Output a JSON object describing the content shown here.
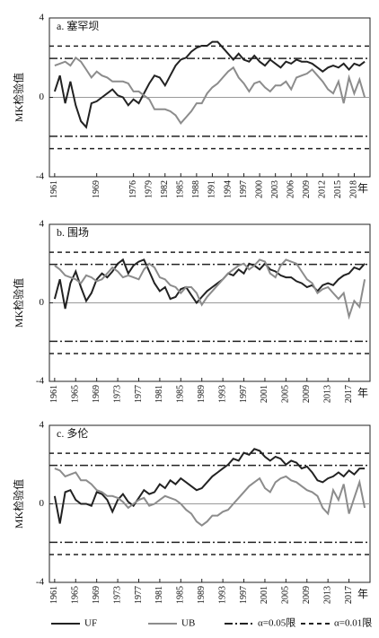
{
  "chart_data": [
    {
      "type": "line",
      "title": "a. 塞罕坝",
      "y_label": "MK检验值",
      "x_label": "年",
      "x": [
        1961,
        1962,
        1963,
        1964,
        1965,
        1966,
        1967,
        1968,
        1969,
        1970,
        1971,
        1972,
        1973,
        1974,
        1975,
        1976,
        1977,
        1978,
        1979,
        1980,
        1981,
        1982,
        1983,
        1984,
        1985,
        1986,
        1987,
        1988,
        1989,
        1990,
        1991,
        1992,
        1993,
        1994,
        1995,
        1996,
        1997,
        1998,
        1999,
        2000,
        2001,
        2002,
        2003,
        2004,
        2005,
        2006,
        2007,
        2008,
        2009,
        2010,
        2011,
        2012,
        2013,
        2014,
        2015,
        2016,
        2017,
        2018,
        2019,
        2020
      ],
      "series": [
        {
          "name": "UF",
          "color": "#222222",
          "values": [
            0.3,
            1.1,
            -0.3,
            0.8,
            -0.4,
            -1.2,
            -1.5,
            -0.3,
            -0.2,
            0.0,
            0.2,
            0.4,
            0.1,
            0.0,
            -0.4,
            -0.1,
            -0.3,
            0.2,
            0.7,
            1.1,
            1.0,
            0.6,
            1.1,
            1.6,
            1.9,
            2.0,
            2.3,
            2.5,
            2.6,
            2.6,
            2.8,
            2.8,
            2.5,
            2.2,
            1.9,
            2.2,
            1.9,
            1.8,
            2.1,
            1.8,
            1.6,
            1.9,
            1.7,
            1.5,
            1.8,
            1.7,
            1.9,
            1.8,
            1.8,
            1.7,
            1.5,
            1.3,
            1.5,
            1.6,
            1.5,
            1.7,
            1.4,
            1.7,
            1.6,
            1.8
          ]
        },
        {
          "name": "UB",
          "color": "#8c8c8c",
          "values": [
            1.6,
            1.7,
            1.8,
            1.6,
            2.0,
            1.8,
            1.4,
            1.0,
            1.3,
            1.1,
            1.0,
            0.8,
            0.8,
            0.8,
            0.7,
            0.3,
            0.3,
            0.1,
            -0.1,
            -0.6,
            -0.6,
            -0.6,
            -0.7,
            -0.9,
            -1.3,
            -1.0,
            -0.7,
            -0.3,
            -0.3,
            0.2,
            0.5,
            0.7,
            1.0,
            1.3,
            1.5,
            1.0,
            0.7,
            0.3,
            0.7,
            0.8,
            0.5,
            0.3,
            0.6,
            0.6,
            0.8,
            0.4,
            1.0,
            1.1,
            1.2,
            1.4,
            1.1,
            0.8,
            0.4,
            0.2,
            0.8,
            -0.3,
            1.0,
            0.2,
            0.9,
            0.0
          ]
        }
      ],
      "reference_lines": [
        {
          "name": "α=0.05限",
          "style": "dashdot",
          "values": [
            1.96,
            -1.96
          ]
        },
        {
          "name": "α=0.01限",
          "style": "dashed",
          "values": [
            2.58,
            -2.58
          ]
        }
      ],
      "xlim": [
        1960,
        2021
      ],
      "xticks": [
        1961,
        1969,
        1976,
        1979,
        1982,
        1985,
        1988,
        1991,
        1994,
        1997,
        2000,
        2003,
        2006,
        2009,
        2012,
        2015,
        2018
      ],
      "ylim": [
        -4,
        4
      ],
      "yticks": [
        -4,
        0,
        4
      ]
    },
    {
      "type": "line",
      "title": "b. 围场",
      "y_label": "MK检验值",
      "x_label": "年",
      "x": [
        1961,
        1962,
        1963,
        1964,
        1965,
        1966,
        1967,
        1968,
        1969,
        1970,
        1971,
        1972,
        1973,
        1974,
        1975,
        1976,
        1977,
        1978,
        1979,
        1980,
        1981,
        1982,
        1983,
        1984,
        1985,
        1986,
        1987,
        1988,
        1989,
        1990,
        1991,
        1992,
        1993,
        1994,
        1995,
        1996,
        1997,
        1998,
        1999,
        2000,
        2001,
        2002,
        2003,
        2004,
        2005,
        2006,
        2007,
        2008,
        2009,
        2010,
        2011,
        2012,
        2013,
        2014,
        2015,
        2016,
        2017,
        2018,
        2019,
        2020
      ],
      "series": [
        {
          "name": "UF",
          "color": "#222222",
          "values": [
            0.2,
            1.2,
            -0.3,
            1.0,
            1.6,
            0.8,
            0.1,
            0.5,
            1.2,
            1.5,
            1.3,
            1.6,
            2.0,
            2.2,
            1.5,
            1.9,
            2.1,
            2.2,
            1.6,
            1.0,
            0.6,
            0.8,
            0.2,
            0.3,
            0.7,
            0.8,
            0.4,
            0.0,
            0.3,
            0.6,
            0.8,
            1.0,
            1.2,
            1.5,
            1.4,
            1.7,
            1.5,
            2.0,
            1.9,
            1.7,
            2.0,
            1.7,
            1.6,
            1.4,
            1.3,
            1.3,
            1.1,
            1.0,
            0.8,
            0.9,
            0.6,
            0.9,
            1.0,
            0.9,
            1.2,
            1.4,
            1.5,
            1.8,
            1.7,
            2.0
          ]
        },
        {
          "name": "UB",
          "color": "#8c8c8c",
          "values": [
            1.9,
            1.7,
            1.4,
            1.3,
            1.2,
            1.0,
            1.4,
            1.3,
            1.1,
            1.2,
            1.5,
            1.8,
            1.6,
            1.3,
            1.4,
            1.3,
            1.2,
            1.7,
            2.0,
            1.8,
            1.3,
            1.2,
            0.9,
            0.8,
            0.5,
            0.8,
            0.8,
            0.5,
            -0.1,
            0.3,
            0.6,
            0.9,
            1.2,
            1.5,
            1.7,
            1.9,
            2.0,
            1.7,
            1.9,
            2.2,
            2.1,
            1.5,
            1.3,
            1.9,
            2.2,
            2.1,
            2.0,
            1.6,
            1.2,
            1.0,
            0.5,
            0.7,
            0.8,
            0.5,
            0.2,
            0.5,
            -0.7,
            0.1,
            -0.2,
            1.2
          ]
        }
      ],
      "reference_lines": [
        {
          "style": "dashdot",
          "values": [
            1.96,
            -1.96
          ]
        },
        {
          "style": "dashed",
          "values": [
            2.58,
            -2.58
          ]
        }
      ],
      "xlim": [
        1960,
        2021
      ],
      "xticks": [
        1961,
        1965,
        1969,
        1973,
        1977,
        1981,
        1985,
        1989,
        1993,
        1997,
        2001,
        2005,
        2009,
        2013,
        2017
      ],
      "ylim": [
        -4,
        4
      ],
      "yticks": [
        -4,
        0,
        4
      ]
    },
    {
      "type": "line",
      "title": "c. 多伦",
      "y_label": "MK检验值",
      "x_label": "年",
      "x": [
        1961,
        1962,
        1963,
        1964,
        1965,
        1966,
        1967,
        1968,
        1969,
        1970,
        1971,
        1972,
        1973,
        1974,
        1975,
        1976,
        1977,
        1978,
        1979,
        1980,
        1981,
        1982,
        1983,
        1984,
        1985,
        1986,
        1987,
        1988,
        1989,
        1990,
        1991,
        1992,
        1993,
        1994,
        1995,
        1996,
        1997,
        1998,
        1999,
        2000,
        2001,
        2002,
        2003,
        2004,
        2005,
        2006,
        2007,
        2008,
        2009,
        2010,
        2011,
        2012,
        2013,
        2014,
        2015,
        2016,
        2017,
        2018,
        2019,
        2020
      ],
      "series": [
        {
          "name": "UF",
          "color": "#222222",
          "values": [
            0.4,
            -1.0,
            0.6,
            0.7,
            0.2,
            0.0,
            0.0,
            -0.1,
            0.6,
            0.5,
            0.2,
            -0.4,
            0.2,
            0.5,
            0.1,
            -0.1,
            0.3,
            0.7,
            0.5,
            0.6,
            1.0,
            0.8,
            1.2,
            1.0,
            1.3,
            1.1,
            0.9,
            0.7,
            0.8,
            1.1,
            1.4,
            1.6,
            1.8,
            2.0,
            2.3,
            2.2,
            2.6,
            2.5,
            2.8,
            2.7,
            2.4,
            2.2,
            2.4,
            2.3,
            2.0,
            2.2,
            2.1,
            1.8,
            1.9,
            1.6,
            1.2,
            1.1,
            1.3,
            1.4,
            1.6,
            1.4,
            1.7,
            1.5,
            1.8,
            1.8
          ]
        },
        {
          "name": "UB",
          "color": "#8c8c8c",
          "values": [
            1.8,
            1.7,
            1.4,
            1.5,
            1.6,
            1.2,
            1.2,
            1.0,
            0.7,
            0.6,
            0.4,
            0.4,
            0.3,
            0.1,
            -0.2,
            0.0,
            0.2,
            0.3,
            -0.1,
            0.0,
            0.2,
            0.4,
            0.3,
            0.2,
            0.0,
            -0.3,
            -0.5,
            -0.9,
            -1.1,
            -0.9,
            -0.6,
            -0.6,
            -0.4,
            -0.3,
            0.0,
            0.3,
            0.6,
            0.9,
            1.1,
            1.3,
            0.8,
            0.6,
            1.1,
            1.3,
            1.4,
            1.2,
            1.1,
            0.9,
            0.7,
            0.6,
            0.4,
            -0.2,
            -0.5,
            0.7,
            0.2,
            1.0,
            -0.5,
            0.3,
            1.1,
            -0.2
          ]
        }
      ],
      "reference_lines": [
        {
          "style": "dashdot",
          "values": [
            1.96,
            -1.96
          ]
        },
        {
          "style": "dashed",
          "values": [
            2.58,
            -2.58
          ]
        }
      ],
      "xlim": [
        1960,
        2021
      ],
      "xticks": [
        1961,
        1965,
        1969,
        1973,
        1977,
        1981,
        1985,
        1989,
        1993,
        1997,
        2001,
        2005,
        2009,
        2013,
        2017
      ],
      "ylim": [
        -4,
        4
      ],
      "yticks": [
        -4,
        0,
        4
      ]
    }
  ]
}
